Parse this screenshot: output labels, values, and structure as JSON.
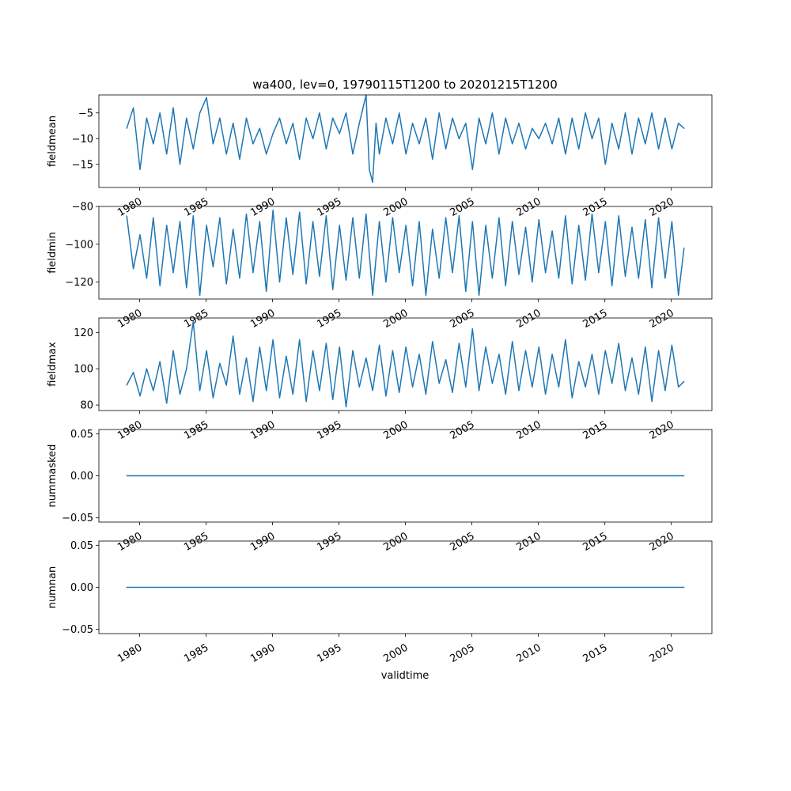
{
  "figure": {
    "title": "wa400, lev=0, 19790115T1200 to 20201215T1200",
    "xlabel": "validtime",
    "line_color": "#1f77b4"
  },
  "chart_data": [
    {
      "type": "line",
      "ylabel": "fieldmean",
      "x_range": [
        "1979-01-15",
        "2020-12-15"
      ],
      "x_ticks": [
        "1980",
        "1985",
        "1990",
        "1995",
        "2000",
        "2005",
        "2010",
        "2015",
        "2020"
      ],
      "y_ticks": [
        -5,
        -10,
        -15
      ],
      "ylim": [
        -19.5,
        -1.5
      ],
      "series": [
        {
          "x": [
            "1979-01-15",
            "1979-07-15",
            "1980-01-15",
            "1980-07-15",
            "1981-01-15",
            "1981-07-15",
            "1982-01-15",
            "1982-07-15",
            "1983-01-15",
            "1983-07-15",
            "1984-01-15",
            "1984-07-15",
            "1985-01-15",
            "1985-07-15",
            "1986-01-15",
            "1986-07-15",
            "1987-01-15",
            "1987-07-15",
            "1988-01-15",
            "1988-07-15",
            "1989-01-15",
            "1989-07-15",
            "1990-01-15",
            "1990-07-15",
            "1991-01-15",
            "1991-07-15",
            "1992-01-15",
            "1992-07-15",
            "1993-01-15",
            "1993-07-15",
            "1994-01-15",
            "1994-07-15",
            "1995-01-15",
            "1995-07-15",
            "1996-01-15",
            "1996-07-15",
            "1997-01-15",
            "1997-04-15",
            "1997-07-15",
            "1997-10-15",
            "1998-01-15",
            "1998-07-15",
            "1999-01-15",
            "1999-07-15",
            "2000-01-15",
            "2000-07-15",
            "2001-01-15",
            "2001-07-15",
            "2002-01-15",
            "2002-07-15",
            "2003-01-15",
            "2003-07-15",
            "2004-01-15",
            "2004-07-15",
            "2005-01-15",
            "2005-07-15",
            "2006-01-15",
            "2006-07-15",
            "2007-01-15",
            "2007-07-15",
            "2008-01-15",
            "2008-07-15",
            "2009-01-15",
            "2009-07-15",
            "2010-01-15",
            "2010-07-15",
            "2011-01-15",
            "2011-07-15",
            "2012-01-15",
            "2012-07-15",
            "2013-01-15",
            "2013-07-15",
            "2014-01-15",
            "2014-07-15",
            "2015-01-15",
            "2015-07-15",
            "2016-01-15",
            "2016-07-15",
            "2017-01-15",
            "2017-07-15",
            "2018-01-15",
            "2018-07-15",
            "2019-01-15",
            "2019-07-15",
            "2020-01-15",
            "2020-07-15",
            "2020-12-15"
          ],
          "values": [
            -8,
            -4,
            -16,
            -6,
            -11,
            -5,
            -13,
            -4,
            -15,
            -6,
            -12,
            -5,
            -2,
            -11,
            -6,
            -13,
            -7,
            -14,
            -6,
            -11,
            -8,
            -13,
            -9,
            -6,
            -11,
            -7,
            -14,
            -6,
            -10,
            -5,
            -12,
            -6,
            -9,
            -5,
            -13,
            -7,
            -1.5,
            -16,
            -18.5,
            -7,
            -13,
            -6,
            -11,
            -5,
            -13,
            -7,
            -11,
            -6,
            -14,
            -5,
            -12,
            -6,
            -10,
            -7,
            -16,
            -6,
            -11,
            -5,
            -13,
            -6,
            -11,
            -7,
            -12,
            -8,
            -10,
            -7,
            -11,
            -6,
            -13,
            -6,
            -12,
            -5,
            -10,
            -6,
            -15,
            -7,
            -12,
            -5,
            -13,
            -6,
            -11,
            -5,
            -12,
            -6,
            -12,
            -7,
            -8
          ]
        }
      ]
    },
    {
      "type": "line",
      "ylabel": "fieldmin",
      "x_range": [
        "1979-01-15",
        "2020-12-15"
      ],
      "x_ticks": [
        "1980",
        "1985",
        "1990",
        "1995",
        "2000",
        "2005",
        "2010",
        "2015",
        "2020"
      ],
      "y_ticks": [
        -80,
        -100,
        -120
      ],
      "ylim": [
        -129,
        -80
      ],
      "series": [
        {
          "x": [
            "1979-01-15",
            "1979-07-15",
            "1980-01-15",
            "1980-07-15",
            "1981-01-15",
            "1981-07-15",
            "1982-01-15",
            "1982-07-15",
            "1983-01-15",
            "1983-07-15",
            "1984-01-15",
            "1984-07-15",
            "1985-01-15",
            "1985-07-15",
            "1986-01-15",
            "1986-07-15",
            "1987-01-15",
            "1987-07-15",
            "1988-01-15",
            "1988-07-15",
            "1989-01-15",
            "1989-07-15",
            "1990-01-15",
            "1990-07-15",
            "1991-01-15",
            "1991-07-15",
            "1992-01-15",
            "1992-07-15",
            "1993-01-15",
            "1993-07-15",
            "1994-01-15",
            "1994-07-15",
            "1995-01-15",
            "1995-07-15",
            "1996-01-15",
            "1996-07-15",
            "1997-01-15",
            "1997-07-15",
            "1998-01-15",
            "1998-07-15",
            "1999-01-15",
            "1999-07-15",
            "2000-01-15",
            "2000-07-15",
            "2001-01-15",
            "2001-07-15",
            "2002-01-15",
            "2002-07-15",
            "2003-01-15",
            "2003-07-15",
            "2004-01-15",
            "2004-07-15",
            "2005-01-15",
            "2005-07-15",
            "2006-01-15",
            "2006-07-15",
            "2007-01-15",
            "2007-07-15",
            "2008-01-15",
            "2008-07-15",
            "2009-01-15",
            "2009-07-15",
            "2010-01-15",
            "2010-07-15",
            "2011-01-15",
            "2011-07-15",
            "2012-01-15",
            "2012-07-15",
            "2013-01-15",
            "2013-07-15",
            "2014-01-15",
            "2014-07-15",
            "2015-01-15",
            "2015-07-15",
            "2016-01-15",
            "2016-07-15",
            "2017-01-15",
            "2017-07-15",
            "2018-01-15",
            "2018-07-15",
            "2019-01-15",
            "2019-07-15",
            "2020-01-15",
            "2020-07-15",
            "2020-12-15"
          ],
          "values": [
            -85,
            -113,
            -95,
            -118,
            -86,
            -122,
            -90,
            -115,
            -88,
            -123,
            -85,
            -127,
            -90,
            -112,
            -86,
            -121,
            -92,
            -118,
            -84,
            -115,
            -88,
            -125,
            -82,
            -120,
            -86,
            -116,
            -83,
            -121,
            -88,
            -117,
            -85,
            -124,
            -90,
            -119,
            -86,
            -118,
            -84,
            -127,
            -88,
            -120,
            -86,
            -115,
            -90,
            -122,
            -88,
            -127,
            -92,
            -118,
            -86,
            -115,
            -85,
            -125,
            -88,
            -127,
            -90,
            -118,
            -86,
            -122,
            -88,
            -116,
            -91,
            -120,
            -87,
            -115,
            -93,
            -118,
            -85,
            -121,
            -90,
            -119,
            -84,
            -115,
            -88,
            -122,
            -85,
            -117,
            -91,
            -118,
            -87,
            -123,
            -86,
            -118,
            -88,
            -127,
            -102
          ]
        }
      ]
    },
    {
      "type": "line",
      "ylabel": "fieldmax",
      "x_range": [
        "1979-01-15",
        "2020-12-15"
      ],
      "x_ticks": [
        "1980",
        "1985",
        "1990",
        "1995",
        "2000",
        "2005",
        "2010",
        "2015",
        "2020"
      ],
      "y_ticks": [
        120,
        100,
        80
      ],
      "ylim": [
        77,
        128
      ],
      "series": [
        {
          "x": [
            "1979-01-15",
            "1979-07-15",
            "1980-01-15",
            "1980-07-15",
            "1981-01-15",
            "1981-07-15",
            "1982-01-15",
            "1982-07-15",
            "1983-01-15",
            "1983-07-15",
            "1984-01-15",
            "1984-07-15",
            "1985-01-15",
            "1985-07-15",
            "1986-01-15",
            "1986-07-15",
            "1987-01-15",
            "1987-07-15",
            "1988-01-15",
            "1988-07-15",
            "1989-01-15",
            "1989-07-15",
            "1990-01-15",
            "1990-07-15",
            "1991-01-15",
            "1991-07-15",
            "1992-01-15",
            "1992-07-15",
            "1993-01-15",
            "1993-07-15",
            "1994-01-15",
            "1994-07-15",
            "1995-01-15",
            "1995-07-15",
            "1996-01-15",
            "1996-07-15",
            "1997-01-15",
            "1997-07-15",
            "1998-01-15",
            "1998-07-15",
            "1999-01-15",
            "1999-07-15",
            "2000-01-15",
            "2000-07-15",
            "2001-01-15",
            "2001-07-15",
            "2002-01-15",
            "2002-07-15",
            "2003-01-15",
            "2003-07-15",
            "2004-01-15",
            "2004-07-15",
            "2005-01-15",
            "2005-07-15",
            "2006-01-15",
            "2006-07-15",
            "2007-01-15",
            "2007-07-15",
            "2008-01-15",
            "2008-07-15",
            "2009-01-15",
            "2009-07-15",
            "2010-01-15",
            "2010-07-15",
            "2011-01-15",
            "2011-07-15",
            "2012-01-15",
            "2012-07-15",
            "2013-01-15",
            "2013-07-15",
            "2014-01-15",
            "2014-07-15",
            "2015-01-15",
            "2015-07-15",
            "2016-01-15",
            "2016-07-15",
            "2017-01-15",
            "2017-07-15",
            "2018-01-15",
            "2018-07-15",
            "2019-01-15",
            "2019-07-15",
            "2020-01-15",
            "2020-07-15",
            "2020-12-15"
          ],
          "values": [
            91,
            98,
            85,
            100,
            88,
            104,
            81,
            110,
            86,
            100,
            126,
            88,
            110,
            84,
            103,
            91,
            118,
            86,
            106,
            82,
            112,
            88,
            116,
            84,
            107,
            86,
            116,
            82,
            110,
            88,
            114,
            83,
            112,
            79,
            110,
            90,
            106,
            88,
            113,
            85,
            110,
            87,
            112,
            90,
            108,
            86,
            115,
            92,
            105,
            87,
            114,
            90,
            122,
            88,
            112,
            92,
            108,
            86,
            115,
            88,
            110,
            90,
            112,
            86,
            108,
            90,
            116,
            84,
            104,
            90,
            108,
            86,
            110,
            92,
            114,
            88,
            106,
            86,
            112,
            82,
            110,
            88,
            113,
            90,
            93
          ]
        }
      ]
    },
    {
      "type": "line",
      "ylabel": "nummasked",
      "x_range": [
        "1979-01-15",
        "2020-12-15"
      ],
      "x_ticks": [
        "1980",
        "1985",
        "1990",
        "1995",
        "2000",
        "2005",
        "2010",
        "2015",
        "2020"
      ],
      "y_ticks": [
        0.05,
        0.0,
        -0.05
      ],
      "y_tick_labels": [
        "0.05",
        "0.00",
        "−0.05"
      ],
      "ylim": [
        -0.055,
        0.055
      ],
      "series": [
        {
          "x": [
            "1979-01-15",
            "2020-12-15"
          ],
          "values": [
            0,
            0
          ]
        }
      ]
    },
    {
      "type": "line",
      "ylabel": "numnan",
      "x_range": [
        "1979-01-15",
        "2020-12-15"
      ],
      "x_ticks": [
        "1980",
        "1985",
        "1990",
        "1995",
        "2000",
        "2005",
        "2010",
        "2015",
        "2020"
      ],
      "y_ticks": [
        0.05,
        0.0,
        -0.05
      ],
      "y_tick_labels": [
        "0.05",
        "0.00",
        "−0.05"
      ],
      "ylim": [
        -0.055,
        0.055
      ],
      "series": [
        {
          "x": [
            "1979-01-15",
            "2020-12-15"
          ],
          "values": [
            0,
            0
          ]
        }
      ]
    }
  ]
}
